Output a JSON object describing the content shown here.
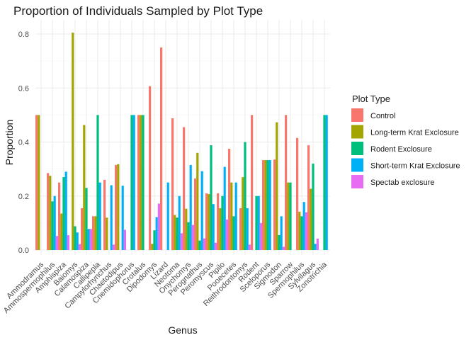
{
  "chart_data": {
    "type": "bar",
    "title": "Proportion of Individuals Sampled by Plot Type",
    "xlabel": "Genus",
    "ylabel": "Proportion",
    "ylim": [
      0,
      0.85
    ],
    "yticks": [
      0.0,
      0.2,
      0.4,
      0.6,
      0.8
    ],
    "ytick_labels": [
      "0.0",
      "0.2",
      "0.4",
      "0.6",
      "0.8"
    ],
    "grid": true,
    "legend_position": "right",
    "legend_title": "Plot Type",
    "categories": [
      "Ammodramus",
      "Ammospermophilus",
      "Amphispiza",
      "Baiomys",
      "Calamospiza",
      "Callipepla",
      "Campylorhynchus",
      "Chaetodipus",
      "Cnemidophorus",
      "Crotalus",
      "Dipodomys",
      "Lizard",
      "Neotoma",
      "Onychomys",
      "Perognathus",
      "Peromyscus",
      "Pipilo",
      "Pooecetes",
      "Reithrodontomys",
      "Rodent",
      "Sceloporus",
      "Sigmodon",
      "Sparrow",
      "Spermophilus",
      "Sylvilagus",
      "Zonotrichia"
    ],
    "series": [
      {
        "name": "Control",
        "color": "#F8766D",
        "values": [
          0.5,
          0.285,
          0.25,
          0.0,
          0.155,
          0.125,
          0.26,
          0.315,
          0.0,
          0.5,
          0.607,
          0.75,
          0.488,
          0.455,
          0.265,
          0.21,
          0.21,
          0.375,
          0.155,
          0.5,
          0.333,
          0.335,
          0.5,
          0.415,
          0.388,
          0.0
        ]
      },
      {
        "name": "Long-term Krat Exclosure",
        "color": "#A3A500",
        "values": [
          0.5,
          0.275,
          0.135,
          0.805,
          0.463,
          0.125,
          0.12,
          0.318,
          0.0,
          0.5,
          0.023,
          0.0,
          0.13,
          0.153,
          0.36,
          0.207,
          0.155,
          0.25,
          0.27,
          0.0,
          0.333,
          0.473,
          0.25,
          0.142,
          0.227,
          0.0
        ]
      },
      {
        "name": "Rodent Exclosure",
        "color": "#00BF7D",
        "values": [
          0.0,
          0.18,
          0.27,
          0.088,
          0.23,
          0.5,
          0.0,
          0.0,
          0.5,
          0.5,
          0.073,
          0.0,
          0.12,
          0.103,
          0.035,
          0.388,
          0.2,
          0.125,
          0.4,
          0.2,
          0.333,
          0.055,
          0.25,
          0.125,
          0.32,
          0.5
        ]
      },
      {
        "name": "Short-term Krat Exclosure",
        "color": "#00B0F6",
        "values": [
          0.0,
          0.2,
          0.29,
          0.065,
          0.078,
          0.25,
          0.24,
          0.238,
          0.5,
          0.0,
          0.122,
          0.25,
          0.2,
          0.315,
          0.292,
          0.17,
          0.308,
          0.25,
          0.155,
          0.2,
          0.333,
          0.125,
          0.0,
          0.178,
          0.023,
          0.5
        ]
      },
      {
        "name": "Spectab exclosure",
        "color": "#E76BF3",
        "values": [
          0.0,
          0.052,
          0.055,
          0.022,
          0.078,
          0.0,
          0.02,
          0.075,
          0.0,
          0.0,
          0.172,
          0.0,
          0.062,
          0.093,
          0.043,
          0.027,
          0.113,
          0.0,
          0.02,
          0.1,
          0.0,
          0.012,
          0.0,
          0.14,
          0.042,
          0.0
        ]
      }
    ]
  }
}
